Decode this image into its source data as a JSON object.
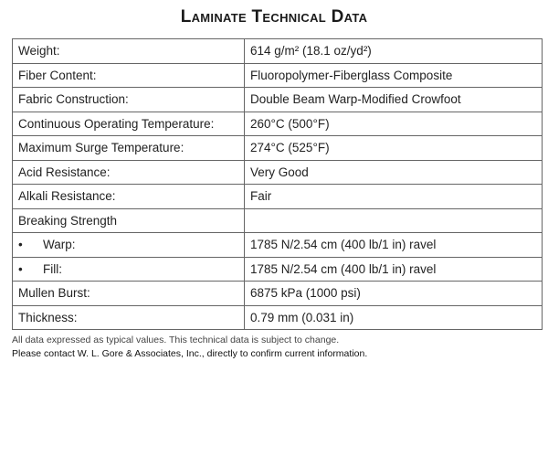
{
  "title": "Laminate Technical Data",
  "rows": [
    {
      "label": "Weight:",
      "value": "614 g/m² (18.1 oz/yd²)"
    },
    {
      "label": "Fiber Content:",
      "value": "Fluoropolymer-Fiberglass Composite"
    },
    {
      "label": "Fabric Construction:",
      "value": "Double Beam Warp-Modified Crowfoot"
    },
    {
      "label": "Continuous Operating Temperature:",
      "value": "260°C (500°F)"
    },
    {
      "label": "Maximum Surge Temperature:",
      "value": "274°C (525°F)"
    },
    {
      "label": "Acid Resistance:",
      "value": "Very Good"
    },
    {
      "label": "Alkali Resistance:",
      "value": "Fair"
    },
    {
      "label": "Breaking Strength",
      "value": ""
    },
    {
      "bullet": "•",
      "label": "Warp:",
      "value": "1785 N/2.54 cm (400 lb/1 in) ravel"
    },
    {
      "bullet": "•",
      "label": "Fill:",
      "value": "1785 N/2.54 cm (400 lb/1 in) ravel"
    },
    {
      "label": "Mullen Burst:",
      "value": "6875 kPa (1000 psi)"
    },
    {
      "label": "Thickness:",
      "value": "0.79 mm (0.031 in)"
    }
  ],
  "footnotes": [
    "All data expressed as typical values.  This technical data is subject to change.",
    "Please contact W. L. Gore & Associates, Inc., directly to confirm current information."
  ]
}
